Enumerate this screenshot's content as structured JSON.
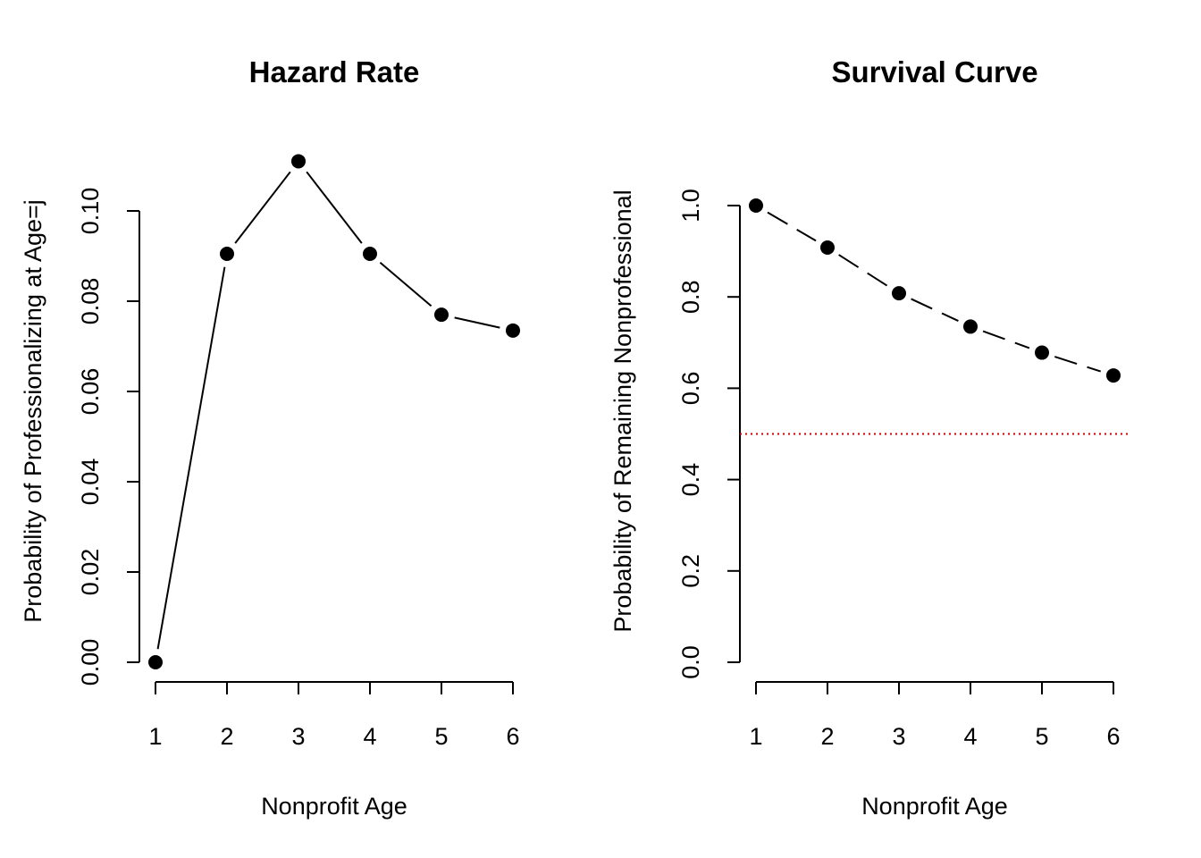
{
  "chart_data": [
    {
      "type": "line",
      "title": "Hazard Rate",
      "xlabel": "Nonprofit Age",
      "ylabel": "Probability of Professionalizing at Age=j",
      "x": [
        1,
        2,
        3,
        4,
        5,
        6
      ],
      "xticks": [
        "1",
        "2",
        "3",
        "4",
        "5",
        "6"
      ],
      "yticks": [
        "0.00",
        "0.02",
        "0.04",
        "0.06",
        "0.08",
        "0.10"
      ],
      "ylim": [
        0,
        0.1
      ],
      "series": [
        {
          "values": [
            0.0,
            0.0905,
            0.111,
            0.0905,
            0.077,
            0.0735
          ],
          "line_style": "solid",
          "color": "#000000"
        }
      ],
      "grid": false
    },
    {
      "type": "line",
      "title": "Survival Curve",
      "xlabel": "Nonprofit Age",
      "ylabel": "Probability of Remaining Nonprofessional",
      "x": [
        1,
        2,
        3,
        4,
        5,
        6
      ],
      "xticks": [
        "1",
        "2",
        "3",
        "4",
        "5",
        "6"
      ],
      "yticks": [
        "0.0",
        "0.2",
        "0.4",
        "0.6",
        "0.8",
        "1.0"
      ],
      "ylim": [
        0,
        1
      ],
      "series": [
        {
          "values": [
            1.0,
            0.908,
            0.808,
            0.735,
            0.678,
            0.628
          ],
          "line_style": "dashed",
          "color": "#000000"
        }
      ],
      "reference_lines": [
        {
          "y": 0.5,
          "line_style": "dotted",
          "color": "#cc0000"
        }
      ],
      "grid": false
    }
  ]
}
